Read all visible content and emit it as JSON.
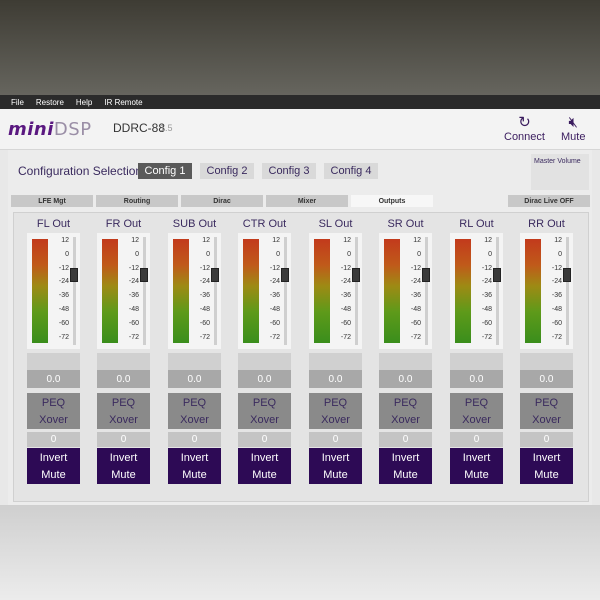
{
  "menu": [
    "File",
    "Restore",
    "Help",
    "IR Remote"
  ],
  "header": {
    "logo_mini": "mini",
    "logo_dsp": "DSP",
    "device": "DDRC-88",
    "version": "1.5",
    "connect_label": "Connect",
    "mute_label": "Mute",
    "icons": {
      "connect": "refresh-icon",
      "mute": "speaker-mute-icon"
    }
  },
  "config": {
    "label": "Configuration Selection:",
    "options": [
      "Config 1",
      "Config 2",
      "Config 3",
      "Config 4"
    ],
    "selected": "Config 1"
  },
  "master_volume_label": "Master Volume",
  "tabs": [
    "LFE Mgt",
    "Routing",
    "Dirac",
    "Mixer",
    "Outputs"
  ],
  "active_tab": "Outputs",
  "dirac_live_label": "Dirac Live OFF",
  "meter_scale": [
    "12",
    "0",
    "-12",
    "-24",
    "-36",
    "-48",
    "-60",
    "-72"
  ],
  "channels": [
    {
      "name": "FL Out",
      "value": "0.0",
      "peq": "PEQ",
      "xover": "Xover",
      "gain": "0",
      "invert": "Invert",
      "mute": "Mute"
    },
    {
      "name": "FR Out",
      "value": "0.0",
      "peq": "PEQ",
      "xover": "Xover",
      "gain": "0",
      "invert": "Invert",
      "mute": "Mute"
    },
    {
      "name": "SUB Out",
      "value": "0.0",
      "peq": "PEQ",
      "xover": "Xover",
      "gain": "0",
      "invert": "Invert",
      "mute": "Mute"
    },
    {
      "name": "CTR Out",
      "value": "0.0",
      "peq": "PEQ",
      "xover": "Xover",
      "gain": "0",
      "invert": "Invert",
      "mute": "Mute"
    },
    {
      "name": "SL Out",
      "value": "0.0",
      "peq": "PEQ",
      "xover": "Xover",
      "gain": "0",
      "invert": "Invert",
      "mute": "Mute"
    },
    {
      "name": "SR Out",
      "value": "0.0",
      "peq": "PEQ",
      "xover": "Xover",
      "gain": "0",
      "invert": "Invert",
      "mute": "Mute"
    },
    {
      "name": "RL Out",
      "value": "0.0",
      "peq": "PEQ",
      "xover": "Xover",
      "gain": "0",
      "invert": "Invert",
      "mute": "Mute"
    },
    {
      "name": "RR Out",
      "value": "0.0",
      "peq": "PEQ",
      "xover": "Xover",
      "gain": "0",
      "invert": "Invert",
      "mute": "Mute"
    }
  ],
  "colors": {
    "accent": "#2d0a55",
    "active_config": "#5a5a5a",
    "text": "#3a2a5e"
  }
}
